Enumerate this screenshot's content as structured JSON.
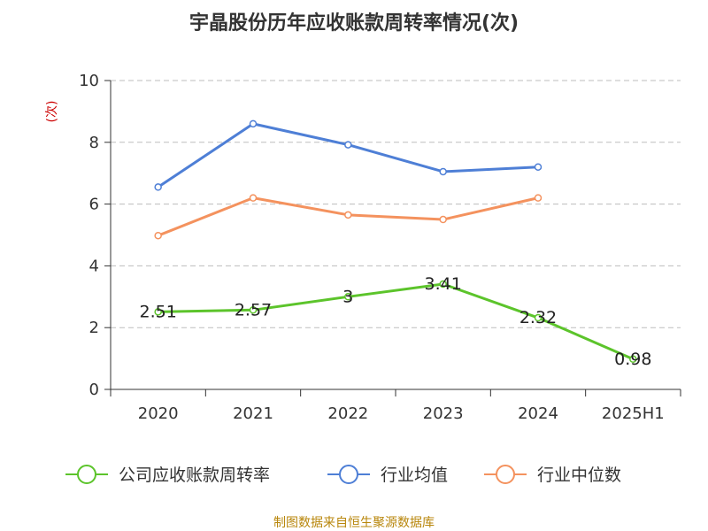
{
  "chart_data": {
    "type": "line",
    "title": "宇晶股份历年应收账款周转率情况(次)",
    "ylabel": "(次)",
    "xlabel": "",
    "categories": [
      "2020",
      "2021",
      "2022",
      "2023",
      "2024",
      "2025H1"
    ],
    "ylim": [
      0,
      10
    ],
    "yticks": [
      0,
      2,
      4,
      6,
      8,
      10
    ],
    "grid": true,
    "legend_position": "bottom",
    "series": [
      {
        "name": "公司应收账款周转率",
        "color": "#5cc42b",
        "values": [
          2.51,
          2.57,
          3,
          3.41,
          2.32,
          0.98
        ],
        "labels": [
          "2.51",
          "2.57",
          "3",
          "3.41",
          "2.32",
          "0.98"
        ]
      },
      {
        "name": "行业均值",
        "color": "#4e7fd6",
        "values": [
          6.55,
          8.6,
          7.92,
          7.05,
          7.2,
          null
        ]
      },
      {
        "name": "行业中位数",
        "color": "#f4925e",
        "values": [
          4.98,
          6.2,
          5.65,
          5.5,
          6.2,
          null
        ]
      }
    ]
  },
  "source": "制图数据来自恒生聚源数据库"
}
